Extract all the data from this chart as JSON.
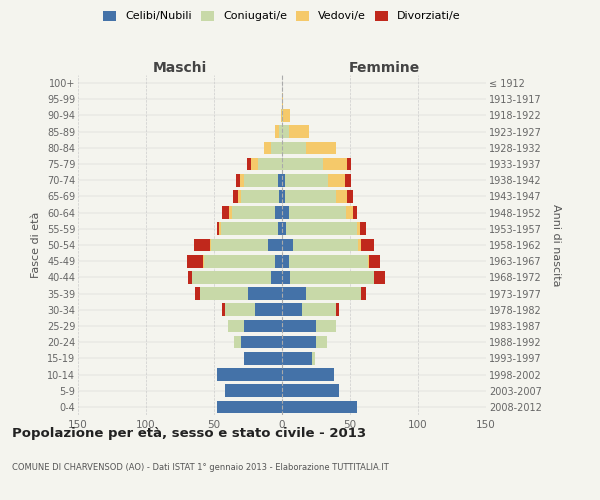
{
  "age_groups": [
    "100+",
    "95-99",
    "90-94",
    "85-89",
    "80-84",
    "75-79",
    "70-74",
    "65-69",
    "60-64",
    "55-59",
    "50-54",
    "45-49",
    "40-44",
    "35-39",
    "30-34",
    "25-29",
    "20-24",
    "15-19",
    "10-14",
    "5-9",
    "0-4"
  ],
  "birth_years": [
    "≤ 1912",
    "1913-1917",
    "1918-1922",
    "1923-1927",
    "1928-1932",
    "1933-1937",
    "1938-1942",
    "1943-1947",
    "1948-1952",
    "1953-1957",
    "1958-1962",
    "1963-1967",
    "1968-1972",
    "1973-1977",
    "1978-1982",
    "1983-1987",
    "1988-1992",
    "1993-1997",
    "1998-2002",
    "2003-2007",
    "2008-2012"
  ],
  "colors": {
    "celibi": "#4472a8",
    "coniugati": "#c8d9a8",
    "vedovi": "#f5c96a",
    "divorziati": "#c0281c"
  },
  "males": {
    "celibi": [
      0,
      0,
      0,
      0,
      0,
      0,
      3,
      2,
      5,
      3,
      10,
      5,
      8,
      25,
      20,
      28,
      30,
      28,
      48,
      42,
      48
    ],
    "coniugati": [
      0,
      0,
      0,
      2,
      8,
      18,
      25,
      28,
      32,
      42,
      42,
      52,
      58,
      35,
      22,
      12,
      5,
      0,
      0,
      0,
      0
    ],
    "vedovi": [
      0,
      0,
      1,
      3,
      5,
      5,
      3,
      2,
      2,
      1,
      1,
      1,
      0,
      0,
      0,
      0,
      0,
      0,
      0,
      0,
      0
    ],
    "divorziati": [
      0,
      0,
      0,
      0,
      0,
      3,
      3,
      4,
      5,
      2,
      12,
      12,
      3,
      4,
      2,
      0,
      0,
      0,
      0,
      0,
      0
    ]
  },
  "females": {
    "nubili": [
      0,
      0,
      0,
      0,
      0,
      0,
      2,
      2,
      5,
      3,
      8,
      5,
      6,
      18,
      15,
      25,
      25,
      22,
      38,
      42,
      55
    ],
    "coniugate": [
      0,
      0,
      1,
      5,
      18,
      30,
      32,
      38,
      42,
      52,
      48,
      58,
      62,
      40,
      25,
      15,
      8,
      2,
      0,
      0,
      0
    ],
    "vedove": [
      0,
      1,
      5,
      15,
      22,
      18,
      12,
      8,
      5,
      2,
      2,
      1,
      0,
      0,
      0,
      0,
      0,
      0,
      0,
      0,
      0
    ],
    "divorziate": [
      0,
      0,
      0,
      0,
      0,
      3,
      5,
      4,
      3,
      5,
      10,
      8,
      8,
      4,
      2,
      0,
      0,
      0,
      0,
      0,
      0
    ]
  },
  "xlim": 150,
  "title": "Popolazione per età, sesso e stato civile - 2013",
  "subtitle": "COMUNE DI CHARVENSOD (AO) - Dati ISTAT 1° gennaio 2013 - Elaborazione TUTTITALIA.IT",
  "ylabel_left": "Fasce di età",
  "ylabel_right": "Anni di nascita",
  "xlabel_left": "Maschi",
  "xlabel_right": "Femmine",
  "background_color": "#f4f4ee",
  "grid_color": "#cccccc"
}
